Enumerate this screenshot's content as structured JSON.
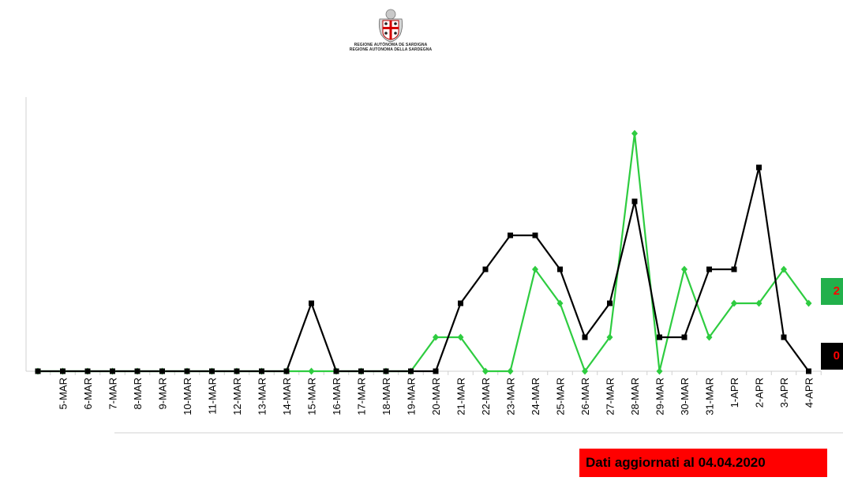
{
  "header": {
    "logo": "sardinia-coat-of-arms",
    "org_line1": "REGIONE AUTÒNOMA DE SARDIGNA",
    "org_line2": "REGIONE AUTONOMA DELLA SARDEGNA"
  },
  "footer": {
    "update_note": "Dati aggiornati al 04.04.2020"
  },
  "last_values": {
    "green": "2",
    "black": "0"
  },
  "colors": {
    "green": "#2ecc40",
    "black": "#000000",
    "banner": "#ff0000",
    "green_tag": "#22b04b"
  },
  "chart_data": {
    "type": "line",
    "title": "",
    "xlabel": "",
    "ylabel": "",
    "ylim": [
      0,
      7
    ],
    "grid": false,
    "legend": "none",
    "categories": [
      "",
      "5-MAR",
      "6-MAR",
      "7-MAR",
      "8-MAR",
      "9-MAR",
      "10-MAR",
      "11-MAR",
      "12-MAR",
      "13-MAR",
      "14-MAR",
      "15-MAR",
      "16-MAR",
      "17-MAR",
      "18-MAR",
      "19-MAR",
      "20-MAR",
      "21-MAR",
      "22-MAR",
      "23-MAR",
      "24-MAR",
      "25-MAR",
      "26-MAR",
      "27-MAR",
      "28-MAR",
      "29-MAR",
      "30-MAR",
      "31-MAR",
      "1-APR",
      "2-APR",
      "3-APR",
      "4-APR"
    ],
    "series": [
      {
        "color": "#2ecc40",
        "marker": "diamond",
        "values": [
          0,
          0,
          0,
          0,
          0,
          0,
          0,
          0,
          0,
          0,
          0,
          0,
          0,
          0,
          0,
          0,
          1,
          1,
          0,
          0,
          3,
          2,
          0,
          1,
          7,
          0,
          3,
          1,
          2,
          2,
          3,
          2
        ]
      },
      {
        "color": "#000000",
        "marker": "square",
        "values": [
          0,
          0,
          0,
          0,
          0,
          0,
          0,
          0,
          0,
          0,
          0,
          2,
          0,
          0,
          0,
          0,
          0,
          2,
          3,
          4,
          4,
          3,
          1,
          2,
          5,
          1,
          1,
          3,
          3,
          6,
          1,
          0
        ]
      }
    ]
  }
}
